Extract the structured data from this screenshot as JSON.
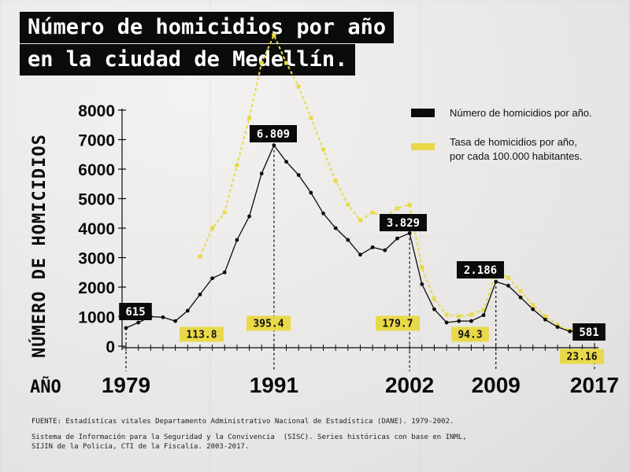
{
  "title_line1": "Número de homicidios por año",
  "title_line2": "en la ciudad de Medellín.",
  "y_axis_title": "NÚMERO DE HOMICIDIOS",
  "x_axis_title": "AÑO",
  "source_1": "FUENTE: Estadísticas vitales Departamento Administrativo Nacional de Estadística (DANE). 1979-2002.",
  "source_2": "Sistema de Información para la Seguridad y la Convivencia  (SISC). Series históricas con base en INML,\nSIJIN de la Policía, CTI de la Fiscalía. 2003-2017.",
  "colors": {
    "dark": "#0b0b0b",
    "yellow": "#e9d94a",
    "paper": "#ecebea"
  },
  "chart_data": {
    "type": "line",
    "x_years": [
      1979,
      1980,
      1981,
      1982,
      1983,
      1984,
      1985,
      1986,
      1987,
      1988,
      1989,
      1990,
      1991,
      1992,
      1993,
      1994,
      1995,
      1996,
      1997,
      1998,
      1999,
      2000,
      2001,
      2002,
      2003,
      2004,
      2005,
      2006,
      2007,
      2008,
      2009,
      2010,
      2011,
      2012,
      2013,
      2014,
      2015,
      2016,
      2017
    ],
    "ylim": [
      0,
      8000
    ],
    "y_ticks": [
      0,
      1000,
      2000,
      3000,
      4000,
      5000,
      6000,
      7000,
      8000
    ],
    "x_tick_labels": [
      "1979",
      "1991",
      "2002",
      "2009",
      "2017"
    ],
    "series": [
      {
        "name": "Número de homicidios por año.",
        "color": "#0b0b0b",
        "values": [
          615,
          800,
          1000,
          980,
          850,
          1200,
          1750,
          2300,
          2500,
          3600,
          4400,
          5850,
          6809,
          6250,
          5800,
          5200,
          4500,
          4000,
          3600,
          3100,
          3350,
          3250,
          3650,
          3829,
          2100,
          1250,
          800,
          850,
          850,
          1050,
          2186,
          2050,
          1650,
          1250,
          900,
          650,
          500,
          530,
          581
        ]
      },
      {
        "name": "Tasa de homicidios por año,\npor cada 100.000 habitantes.",
        "color": "#e9d94a",
        "values": [
          null,
          null,
          null,
          null,
          null,
          null,
          113.8,
          150,
          170,
          230,
          290,
          360,
          395.4,
          360,
          330,
          290,
          250,
          210,
          180,
          160,
          170,
          165,
          175,
          179.7,
          100,
          60,
          40,
          38,
          40,
          46,
          94.3,
          87,
          70,
          52,
          38,
          27,
          20,
          21,
          23.16
        ]
      }
    ],
    "annotations": [
      {
        "year": 1979,
        "text": "615",
        "series": 0
      },
      {
        "year": 1991,
        "text": "6.809",
        "series": 0
      },
      {
        "year": 2002,
        "text": "3.829",
        "series": 0
      },
      {
        "year": 2009,
        "text": "2.186",
        "series": 0
      },
      {
        "year": 2017,
        "text": "581",
        "series": 0
      },
      {
        "year": 1985,
        "text": "113.8",
        "series": 1
      },
      {
        "year": 1991,
        "text": "395.4",
        "series": 1
      },
      {
        "year": 2002,
        "text": "179.7",
        "series": 1
      },
      {
        "year": 2009,
        "text": "94.3",
        "series": 1
      },
      {
        "year": 2017,
        "text": "23.16",
        "series": 1
      }
    ],
    "legend_position": "top-right"
  }
}
